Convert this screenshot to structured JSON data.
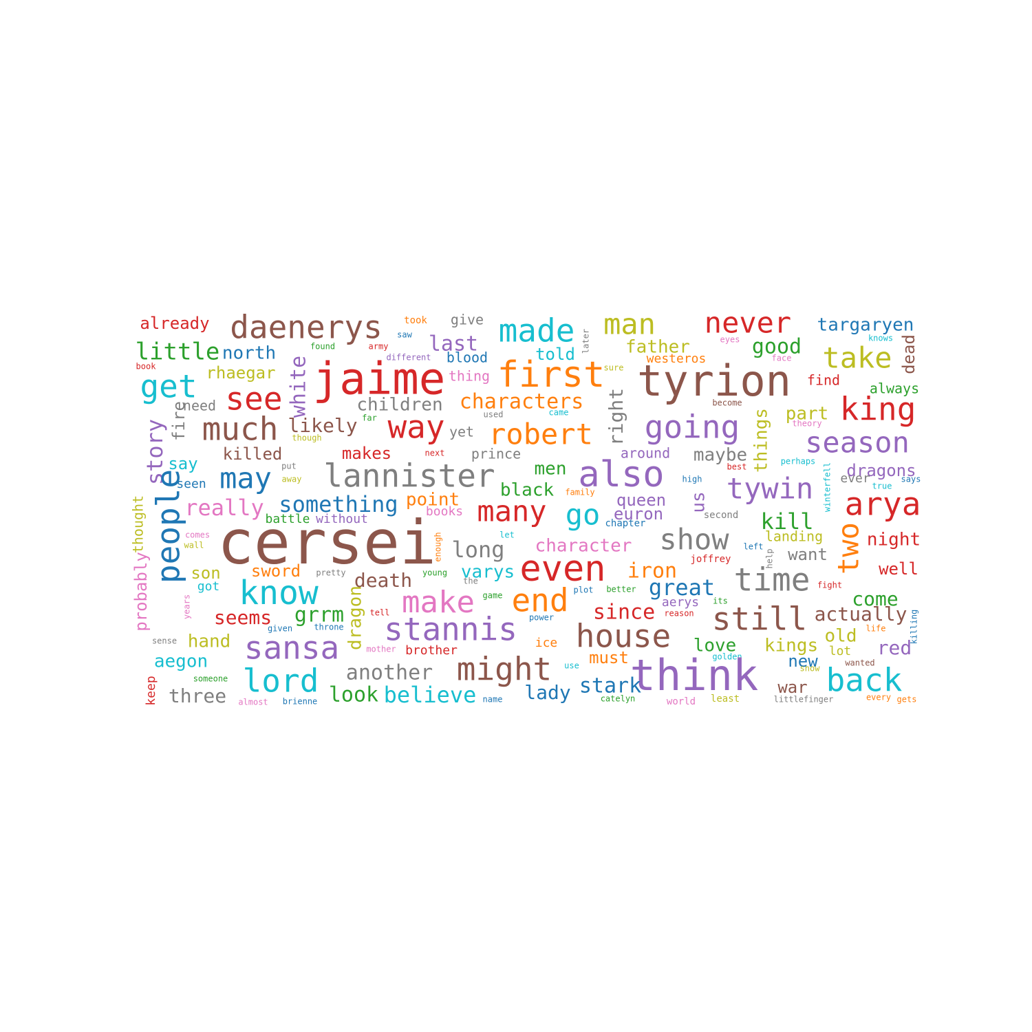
{
  "palette": {
    "blue": "#1f77b4",
    "orange": "#ff7f0e",
    "green": "#2ca02c",
    "red": "#d62728",
    "purple": "#9467bd",
    "brown": "#8c564b",
    "pink": "#e377c2",
    "gray": "#7f7f7f",
    "olive": "#bcbd22",
    "cyan": "#17becf"
  },
  "words": [
    {
      "text": "already",
      "c": "red"
    },
    {
      "text": "daenerys",
      "c": "brown"
    },
    {
      "text": "took",
      "c": "orange"
    },
    {
      "text": "give",
      "c": "gray"
    },
    {
      "text": "made",
      "c": "cyan"
    },
    {
      "text": "man",
      "c": "olive"
    },
    {
      "text": "never",
      "c": "red"
    },
    {
      "text": "targaryen",
      "c": "blue"
    },
    {
      "text": "little",
      "c": "green"
    },
    {
      "text": "north",
      "c": "blue"
    },
    {
      "text": "found",
      "c": "green"
    },
    {
      "text": "army",
      "c": "red"
    },
    {
      "text": "saw",
      "c": "blue"
    },
    {
      "text": "last",
      "c": "purple"
    },
    {
      "text": "later",
      "c": "gray"
    },
    {
      "text": "father",
      "c": "olive"
    },
    {
      "text": "good",
      "c": "green"
    },
    {
      "text": "eyes",
      "c": "pink"
    },
    {
      "text": "knows",
      "c": "cyan"
    },
    {
      "text": "take",
      "c": "olive"
    },
    {
      "text": "dead",
      "c": "brown"
    },
    {
      "text": "book",
      "c": "red"
    },
    {
      "text": "different",
      "c": "purple"
    },
    {
      "text": "blood",
      "c": "blue"
    },
    {
      "text": "told",
      "c": "cyan"
    },
    {
      "text": "westeros",
      "c": "orange"
    },
    {
      "text": "face",
      "c": "pink"
    },
    {
      "text": "jaime",
      "c": "red"
    },
    {
      "text": "first",
      "c": "orange"
    },
    {
      "text": "tyrion",
      "c": "brown"
    },
    {
      "text": "sure",
      "c": "olive"
    },
    {
      "text": "rhaegar",
      "c": "olive"
    },
    {
      "text": "get",
      "c": "cyan"
    },
    {
      "text": "see",
      "c": "red"
    },
    {
      "text": "thing",
      "c": "pink"
    },
    {
      "text": "find",
      "c": "red"
    },
    {
      "text": "always",
      "c": "green"
    },
    {
      "text": "need",
      "c": "gray"
    },
    {
      "text": "children",
      "c": "gray"
    },
    {
      "text": "characters",
      "c": "orange"
    },
    {
      "text": "white",
      "c": "purple"
    },
    {
      "text": "become",
      "c": "brown"
    },
    {
      "text": "right",
      "c": "gray"
    },
    {
      "text": "king",
      "c": "red"
    },
    {
      "text": "part",
      "c": "olive"
    },
    {
      "text": "fire",
      "c": "gray"
    },
    {
      "text": "used",
      "c": "gray"
    },
    {
      "text": "came",
      "c": "cyan"
    },
    {
      "text": "far",
      "c": "green"
    },
    {
      "text": "much",
      "c": "brown"
    },
    {
      "text": "likely",
      "c": "brown"
    },
    {
      "text": "way",
      "c": "red"
    },
    {
      "text": "robert",
      "c": "orange"
    },
    {
      "text": "going",
      "c": "purple"
    },
    {
      "text": "theory",
      "c": "pink"
    },
    {
      "text": "though",
      "c": "olive"
    },
    {
      "text": "yet",
      "c": "gray"
    },
    {
      "text": "things",
      "c": "olive"
    },
    {
      "text": "season",
      "c": "purple"
    },
    {
      "text": "story",
      "c": "purple"
    },
    {
      "text": "killed",
      "c": "brown"
    },
    {
      "text": "makes",
      "c": "red"
    },
    {
      "text": "next",
      "c": "red"
    },
    {
      "text": "prince",
      "c": "gray"
    },
    {
      "text": "around",
      "c": "purple"
    },
    {
      "text": "maybe",
      "c": "gray"
    },
    {
      "text": "say",
      "c": "cyan"
    },
    {
      "text": "put",
      "c": "gray"
    },
    {
      "text": "perhaps",
      "c": "cyan"
    },
    {
      "text": "best",
      "c": "red"
    },
    {
      "text": "may",
      "c": "blue"
    },
    {
      "text": "lannister",
      "c": "gray"
    },
    {
      "text": "also",
      "c": "purple"
    },
    {
      "text": "dragons",
      "c": "purple"
    },
    {
      "text": "away",
      "c": "olive"
    },
    {
      "text": "men",
      "c": "green"
    },
    {
      "text": "seen",
      "c": "blue"
    },
    {
      "text": "high",
      "c": "blue"
    },
    {
      "text": "tywin",
      "c": "purple"
    },
    {
      "text": "winterfell",
      "c": "cyan"
    },
    {
      "text": "ever",
      "c": "gray"
    },
    {
      "text": "says",
      "c": "blue"
    },
    {
      "text": "true",
      "c": "cyan"
    },
    {
      "text": "black",
      "c": "green"
    },
    {
      "text": "family",
      "c": "orange"
    },
    {
      "text": "something",
      "c": "blue"
    },
    {
      "text": "point",
      "c": "orange"
    },
    {
      "text": "queen",
      "c": "purple"
    },
    {
      "text": "arya",
      "c": "red"
    },
    {
      "text": "people",
      "c": "blue"
    },
    {
      "text": "really",
      "c": "pink"
    },
    {
      "text": "many",
      "c": "red"
    },
    {
      "text": "go",
      "c": "cyan"
    },
    {
      "text": "us",
      "c": "purple"
    },
    {
      "text": "books",
      "c": "pink"
    },
    {
      "text": "battle",
      "c": "green"
    },
    {
      "text": "without",
      "c": "purple"
    },
    {
      "text": "euron",
      "c": "purple"
    },
    {
      "text": "second",
      "c": "gray"
    },
    {
      "text": "kill",
      "c": "green"
    },
    {
      "text": "thought",
      "c": "olive"
    },
    {
      "text": "chapter",
      "c": "blue"
    },
    {
      "text": "two",
      "c": "orange"
    },
    {
      "text": "let",
      "c": "cyan"
    },
    {
      "text": "comes",
      "c": "pink"
    },
    {
      "text": "probably",
      "c": "pink"
    },
    {
      "text": "landing",
      "c": "olive"
    },
    {
      "text": "cersei",
      "c": "brown"
    },
    {
      "text": "enough",
      "c": "orange"
    },
    {
      "text": "show",
      "c": "gray"
    },
    {
      "text": "night",
      "c": "red"
    },
    {
      "text": "wall",
      "c": "olive"
    },
    {
      "text": "character",
      "c": "pink"
    },
    {
      "text": "left",
      "c": "blue"
    },
    {
      "text": "long",
      "c": "gray"
    },
    {
      "text": "want",
      "c": "gray"
    },
    {
      "text": "help",
      "c": "gray"
    },
    {
      "text": "joffrey",
      "c": "red"
    },
    {
      "text": "son",
      "c": "olive"
    },
    {
      "text": "sword",
      "c": "orange"
    },
    {
      "text": "pretty",
      "c": "gray"
    },
    {
      "text": "even",
      "c": "red"
    },
    {
      "text": "iron",
      "c": "orange"
    },
    {
      "text": "varys",
      "c": "cyan"
    },
    {
      "text": "young",
      "c": "green"
    },
    {
      "text": "well",
      "c": "red"
    },
    {
      "text": "got",
      "c": "cyan"
    },
    {
      "text": "death",
      "c": "brown"
    },
    {
      "text": "the",
      "c": "gray"
    },
    {
      "text": "time",
      "c": "gray"
    },
    {
      "text": "know",
      "c": "cyan"
    },
    {
      "text": "great",
      "c": "blue"
    },
    {
      "text": "plot",
      "c": "blue"
    },
    {
      "text": "better",
      "c": "green"
    },
    {
      "text": "fight",
      "c": "red"
    },
    {
      "text": "make",
      "c": "pink"
    },
    {
      "text": "game",
      "c": "green"
    },
    {
      "text": "its",
      "c": "green"
    },
    {
      "text": "come",
      "c": "green"
    },
    {
      "text": "end",
      "c": "orange"
    },
    {
      "text": "since",
      "c": "red"
    },
    {
      "text": "aerys",
      "c": "purple"
    },
    {
      "text": "years",
      "c": "pink"
    },
    {
      "text": "seems",
      "c": "red"
    },
    {
      "text": "grrm",
      "c": "green"
    },
    {
      "text": "tell",
      "c": "red"
    },
    {
      "text": "power",
      "c": "blue"
    },
    {
      "text": "reason",
      "c": "red"
    },
    {
      "text": "still",
      "c": "brown"
    },
    {
      "text": "actually",
      "c": "brown"
    },
    {
      "text": "killing",
      "c": "blue"
    },
    {
      "text": "given",
      "c": "blue"
    },
    {
      "text": "throne",
      "c": "blue"
    },
    {
      "text": "stannis",
      "c": "purple"
    },
    {
      "text": "dragon",
      "c": "olive"
    },
    {
      "text": "house",
      "c": "brown"
    },
    {
      "text": "life",
      "c": "orange"
    },
    {
      "text": "old",
      "c": "olive"
    },
    {
      "text": "hand",
      "c": "olive"
    },
    {
      "text": "sense",
      "c": "gray"
    },
    {
      "text": "mother",
      "c": "pink"
    },
    {
      "text": "brother",
      "c": "red"
    },
    {
      "text": "ice",
      "c": "orange"
    },
    {
      "text": "love",
      "c": "green"
    },
    {
      "text": "kings",
      "c": "olive"
    },
    {
      "text": "lot",
      "c": "olive"
    },
    {
      "text": "red",
      "c": "purple"
    },
    {
      "text": "sansa",
      "c": "purple"
    },
    {
      "text": "aegon",
      "c": "cyan"
    },
    {
      "text": "must",
      "c": "orange"
    },
    {
      "text": "golden",
      "c": "cyan"
    },
    {
      "text": "new",
      "c": "blue"
    },
    {
      "text": "wanted",
      "c": "brown"
    },
    {
      "text": "another",
      "c": "gray"
    },
    {
      "text": "might",
      "c": "brown"
    },
    {
      "text": "use",
      "c": "cyan"
    },
    {
      "text": "think",
      "c": "purple"
    },
    {
      "text": "snow",
      "c": "olive"
    },
    {
      "text": "keep",
      "c": "red"
    },
    {
      "text": "someone",
      "c": "green"
    },
    {
      "text": "lord",
      "c": "cyan"
    },
    {
      "text": "stark",
      "c": "blue"
    },
    {
      "text": "war",
      "c": "brown"
    },
    {
      "text": "back",
      "c": "cyan"
    },
    {
      "text": "three",
      "c": "gray"
    },
    {
      "text": "almost",
      "c": "pink"
    },
    {
      "text": "brienne",
      "c": "blue"
    },
    {
      "text": "look",
      "c": "green"
    },
    {
      "text": "believe",
      "c": "cyan"
    },
    {
      "text": "name",
      "c": "blue"
    },
    {
      "text": "lady",
      "c": "blue"
    },
    {
      "text": "catelyn",
      "c": "green"
    },
    {
      "text": "world",
      "c": "pink"
    },
    {
      "text": "least",
      "c": "olive"
    },
    {
      "text": "littlefinger",
      "c": "gray"
    },
    {
      "text": "every",
      "c": "orange"
    },
    {
      "text": "gets",
      "c": "orange"
    }
  ]
}
